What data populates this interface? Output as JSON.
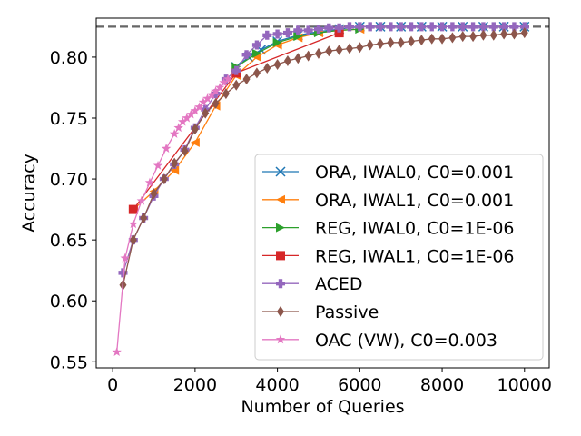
{
  "chart_data": {
    "type": "line",
    "title": "",
    "xlabel": "Number of Queries",
    "ylabel": "Accuracy",
    "xlim": [
      -400,
      10600
    ],
    "ylim": [
      0.545,
      0.832
    ],
    "xticks": [
      0,
      2000,
      4000,
      6000,
      8000,
      10000
    ],
    "xtick_labels": [
      "0",
      "2000",
      "4000",
      "6000",
      "8000",
      "10000"
    ],
    "yticks": [
      0.55,
      0.6,
      0.65,
      0.7,
      0.75,
      0.8
    ],
    "ytick_labels": [
      "0.55",
      "0.60",
      "0.65",
      "0.70",
      "0.75",
      "0.80"
    ],
    "reference_line": {
      "y": 0.825,
      "style": "dashed",
      "color": "#666666"
    },
    "grid": false,
    "legend_position": "lower-right",
    "series": [
      {
        "name": "ORA, IWAL0, C0=0.001",
        "color": "#1f77b4",
        "marker": "x",
        "x": [
          3000,
          3300,
          3600,
          4000,
          4500,
          5000,
          5500,
          6000,
          6500,
          7000,
          7500,
          8000,
          8500,
          9000,
          9500,
          10000
        ],
        "y": [
          0.792,
          0.8,
          0.806,
          0.813,
          0.818,
          0.821,
          0.823,
          0.825,
          0.825,
          0.825,
          0.825,
          0.825,
          0.825,
          0.825,
          0.825,
          0.825
        ]
      },
      {
        "name": "ORA, IWAL1, C0=0.001",
        "color": "#ff7f0e",
        "marker": "triangle-left",
        "x": [
          500,
          1000,
          1500,
          2000,
          2500,
          3000,
          3500,
          4000,
          4500,
          5000,
          5500,
          6000
        ],
        "y": [
          0.675,
          0.69,
          0.707,
          0.73,
          0.76,
          0.785,
          0.8,
          0.81,
          0.816,
          0.82,
          0.822,
          0.823
        ]
      },
      {
        "name": "REG, IWAL0, C0=1E-06",
        "color": "#2ca02c",
        "marker": "triangle-right",
        "x": [
          3000,
          3500,
          4000,
          4500,
          5000,
          5500,
          6000
        ],
        "y": [
          0.792,
          0.803,
          0.812,
          0.817,
          0.82,
          0.822,
          0.823
        ]
      },
      {
        "name": "REG, IWAL1, C0=1E-06",
        "color": "#d62728",
        "marker": "square",
        "x": [
          500,
          3000,
          5500
        ],
        "y": [
          0.675,
          0.787,
          0.82
        ]
      },
      {
        "name": "ACED",
        "color": "#9467bd",
        "marker": "plus",
        "x": [
          250,
          500,
          750,
          1000,
          1250,
          1500,
          1750,
          2000,
          2250,
          2500,
          2750,
          3000,
          3250,
          3500,
          3750,
          4000,
          4250,
          4500,
          4750,
          5000,
          5250,
          5500,
          5750,
          6000,
          6250,
          6500,
          6750,
          7000,
          7250,
          7500,
          7750,
          8000,
          8250,
          8500,
          8750,
          9000,
          9250,
          9500,
          9750,
          10000
        ],
        "y": [
          0.623,
          0.65,
          0.668,
          0.686,
          0.7,
          0.712,
          0.724,
          0.742,
          0.757,
          0.77,
          0.782,
          0.789,
          0.802,
          0.81,
          0.818,
          0.819,
          0.82,
          0.822,
          0.822,
          0.823,
          0.824,
          0.824,
          0.825,
          0.825,
          0.825,
          0.825,
          0.825,
          0.825,
          0.825,
          0.825,
          0.825,
          0.825,
          0.825,
          0.825,
          0.825,
          0.825,
          0.825,
          0.825,
          0.825,
          0.825
        ]
      },
      {
        "name": "Passive",
        "color": "#8c564b",
        "marker": "diamond",
        "x": [
          250,
          500,
          750,
          1000,
          1250,
          1500,
          1750,
          2000,
          2250,
          2500,
          2750,
          3000,
          3250,
          3500,
          3750,
          4000,
          4250,
          4500,
          4750,
          5000,
          5250,
          5500,
          5750,
          6000,
          6250,
          6500,
          6750,
          7000,
          7250,
          7500,
          7750,
          8000,
          8250,
          8500,
          8750,
          9000,
          9250,
          9500,
          9750,
          10000
        ],
        "y": [
          0.613,
          0.65,
          0.668,
          0.688,
          0.7,
          0.713,
          0.723,
          0.741,
          0.754,
          0.762,
          0.77,
          0.777,
          0.782,
          0.787,
          0.791,
          0.794,
          0.797,
          0.799,
          0.801,
          0.803,
          0.805,
          0.806,
          0.807,
          0.808,
          0.81,
          0.811,
          0.812,
          0.812,
          0.813,
          0.814,
          0.815,
          0.815,
          0.816,
          0.817,
          0.817,
          0.818,
          0.818,
          0.819,
          0.819,
          0.82
        ]
      },
      {
        "name": "OAC (VW), C0=0.003",
        "color": "#e377c2",
        "marker": "star",
        "x": [
          100,
          300,
          500,
          700,
          900,
          1100,
          1300,
          1500,
          1600,
          1700,
          1800,
          1900,
          2000,
          2100,
          2200,
          2300,
          2400,
          2500,
          2600,
          2700,
          2800
        ],
        "y": [
          0.558,
          0.635,
          0.663,
          0.682,
          0.697,
          0.711,
          0.725,
          0.737,
          0.742,
          0.747,
          0.75,
          0.753,
          0.756,
          0.759,
          0.763,
          0.766,
          0.769,
          0.772,
          0.775,
          0.779,
          0.782
        ]
      }
    ]
  }
}
